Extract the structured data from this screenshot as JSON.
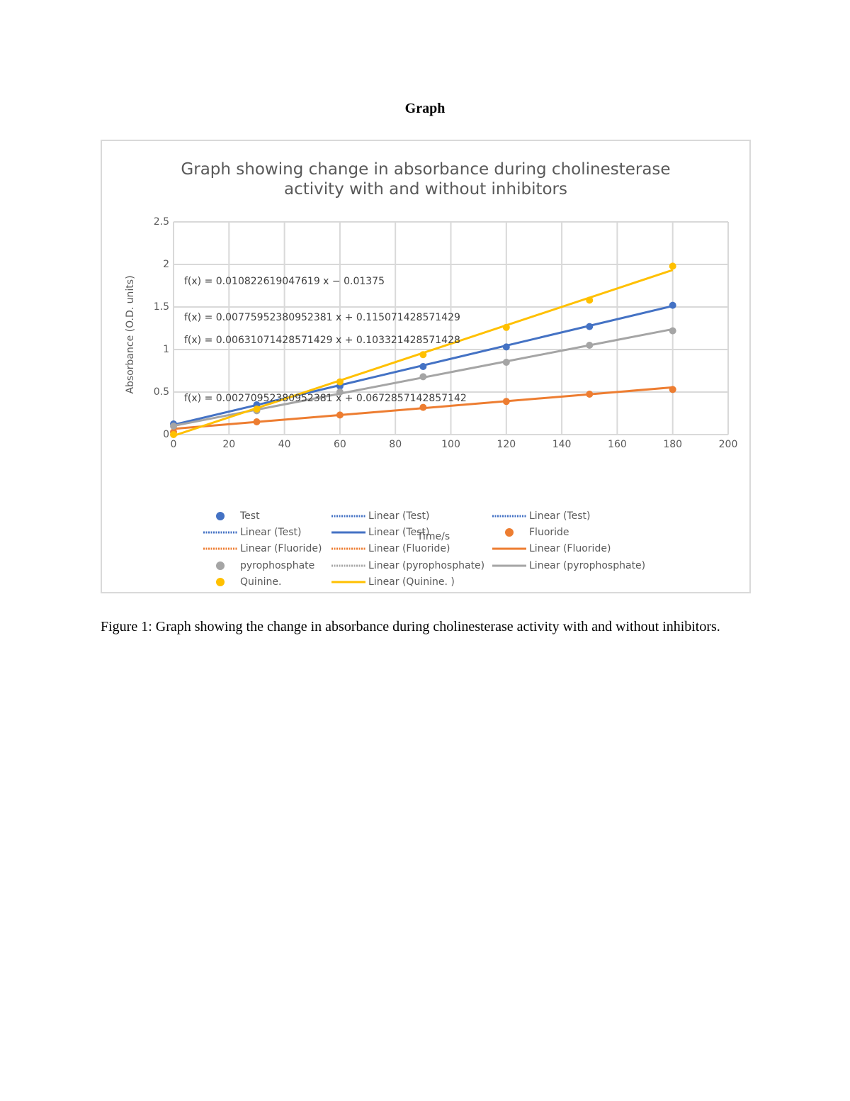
{
  "heading": "Graph",
  "caption": "Figure 1: Graph showing the change in absorbance during cholinesterase activity with and without inhibitors.",
  "chart_data": {
    "type": "scatter",
    "title": "Graph showing change in absorbance during cholinesterase activity with and without inhibitors",
    "x_label": "Time/s",
    "y_label": "Absorbance (O.D. units)",
    "x": [
      0,
      30,
      60,
      90,
      120,
      150,
      180
    ],
    "xlim": [
      0,
      200
    ],
    "xticks": [
      0,
      20,
      40,
      60,
      80,
      100,
      120,
      140,
      160,
      180,
      200
    ],
    "ylim": [
      0,
      2.5
    ],
    "yticks": [
      0,
      0.5,
      1,
      1.5,
      2,
      2.5
    ],
    "grid": true,
    "series": [
      {
        "name": "Test",
        "color": "#4472c4",
        "values": [
          0.125,
          0.35,
          0.57,
          0.8,
          1.03,
          1.27,
          1.52
        ],
        "trend": {
          "slope": 0.00775952380952381,
          "intercept": 0.115071428571429,
          "equation": "f(x) = 0.00775952380952381 x + 0.115071428571429"
        }
      },
      {
        "name": "Fluoride",
        "color": "#ed7d31",
        "values": [
          0.03,
          0.15,
          0.23,
          0.32,
          0.39,
          0.475,
          0.53
        ],
        "trend": {
          "slope": 0.00270952380952381,
          "intercept": 0.0672857142857142,
          "equation": "f(x) = 0.00270952380952381 x + 0.0672857142857142"
        }
      },
      {
        "name": "pyrophosphate",
        "color": "#a5a5a5",
        "values": [
          0.1,
          0.28,
          0.5,
          0.68,
          0.85,
          1.05,
          1.22
        ],
        "trend": {
          "slope": 0.00631071428571429,
          "intercept": 0.103321428571428,
          "equation": "f(x) = 0.00631071428571429 x + 0.103321428571428"
        }
      },
      {
        "name": "Quinine.",
        "color": "#ffc000",
        "values": [
          0,
          0.3,
          0.62,
          0.94,
          1.26,
          1.58,
          1.98
        ],
        "trend": {
          "slope": 0.010822619047619,
          "intercept": -0.01375,
          "equation": "f(x) = 0.010822619047619 x − 0.01375"
        }
      }
    ],
    "legend_entries": [
      {
        "label": "Test",
        "color": "#4472c4",
        "style": "marker"
      },
      {
        "label": "Linear (Test)",
        "color": "#4472c4",
        "style": "dotted"
      },
      {
        "label": "Linear (Test)",
        "color": "#4472c4",
        "style": "dotted"
      },
      {
        "label": "Linear (Test)",
        "color": "#4472c4",
        "style": "dotted"
      },
      {
        "label": "Linear (Test)",
        "color": "#4472c4",
        "style": "solid"
      },
      {
        "label": "Fluoride",
        "color": "#ed7d31",
        "style": "marker"
      },
      {
        "label": "Linear (Fluoride)",
        "color": "#ed7d31",
        "style": "dotted"
      },
      {
        "label": "Linear (Fluoride)",
        "color": "#ed7d31",
        "style": "dotted"
      },
      {
        "label": "Linear (Fluoride)",
        "color": "#ed7d31",
        "style": "solid"
      },
      {
        "label": "pyrophosphate",
        "color": "#a5a5a5",
        "style": "marker"
      },
      {
        "label": "Linear (pyrophosphate)",
        "color": "#a5a5a5",
        "style": "dotted"
      },
      {
        "label": "Linear (pyrophosphate)",
        "color": "#a5a5a5",
        "style": "solid"
      },
      {
        "label": "Quinine.",
        "color": "#ffc000",
        "style": "marker"
      },
      {
        "label": "Linear (Quinine.  )",
        "color": "#ffc000",
        "style": "solid"
      }
    ]
  }
}
